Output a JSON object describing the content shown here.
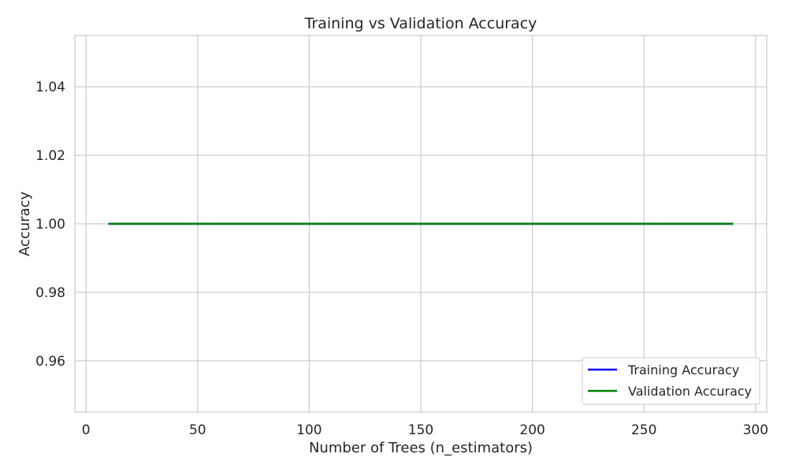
{
  "chart_data": {
    "type": "line",
    "title": "Training vs Validation Accuracy",
    "xlabel": "Number of Trees (n_estimators)",
    "ylabel": "Accuracy",
    "xlim": [
      -5,
      305
    ],
    "ylim": [
      0.945,
      1.055
    ],
    "xticks": [
      0,
      50,
      100,
      150,
      200,
      250,
      300
    ],
    "yticks": [
      0.96,
      0.98,
      1.0,
      1.02,
      1.04
    ],
    "xtick_labels": [
      "0",
      "50",
      "100",
      "150",
      "200",
      "250",
      "300"
    ],
    "ytick_labels": [
      "0.96",
      "0.98",
      "1.00",
      "1.02",
      "1.04"
    ],
    "grid": true,
    "legend_position": "lower-right",
    "x": [
      10,
      290
    ],
    "series": [
      {
        "name": "Training Accuracy",
        "color": "#0000ff",
        "values": [
          1.0,
          1.0
        ]
      },
      {
        "name": "Validation Accuracy",
        "color": "#008000",
        "values": [
          1.0,
          1.0
        ]
      }
    ]
  }
}
